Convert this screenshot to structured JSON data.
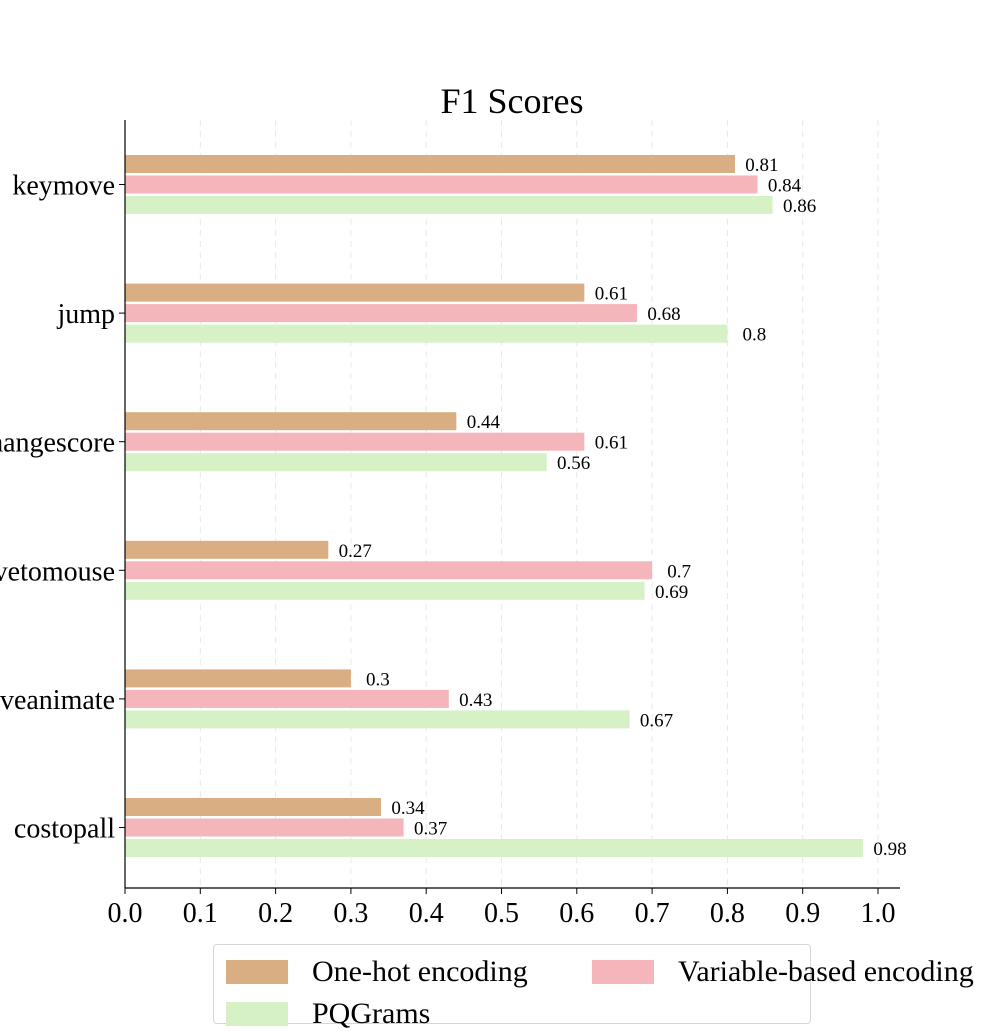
{
  "chart_data": {
    "type": "bar",
    "orientation": "horizontal",
    "title": "F1 Scores",
    "categories": [
      "keymove",
      "jump",
      "changescore",
      "movetomouse",
      "moveanimate",
      "costopall"
    ],
    "xlim": [
      0.0,
      1.0
    ],
    "x_ticks": [
      "0.0",
      "0.1",
      "0.2",
      "0.3",
      "0.4",
      "0.5",
      "0.6",
      "0.7",
      "0.8",
      "0.9",
      "1.0"
    ],
    "grid": "vertical dashed",
    "legend_position": "bottom",
    "series": [
      {
        "name": "One-hot encoding",
        "color": "#d9ae82",
        "values": [
          0.81,
          0.61,
          0.44,
          0.27,
          0.3,
          0.34
        ]
      },
      {
        "name": "Variable-based encoding",
        "color": "#f4b5bb",
        "values": [
          0.84,
          0.68,
          0.61,
          0.7,
          0.43,
          0.37
        ]
      },
      {
        "name": "PQGrams",
        "color": "#d5f1c5",
        "values": [
          0.86,
          0.8,
          0.56,
          0.69,
          0.67,
          0.98
        ]
      }
    ]
  }
}
